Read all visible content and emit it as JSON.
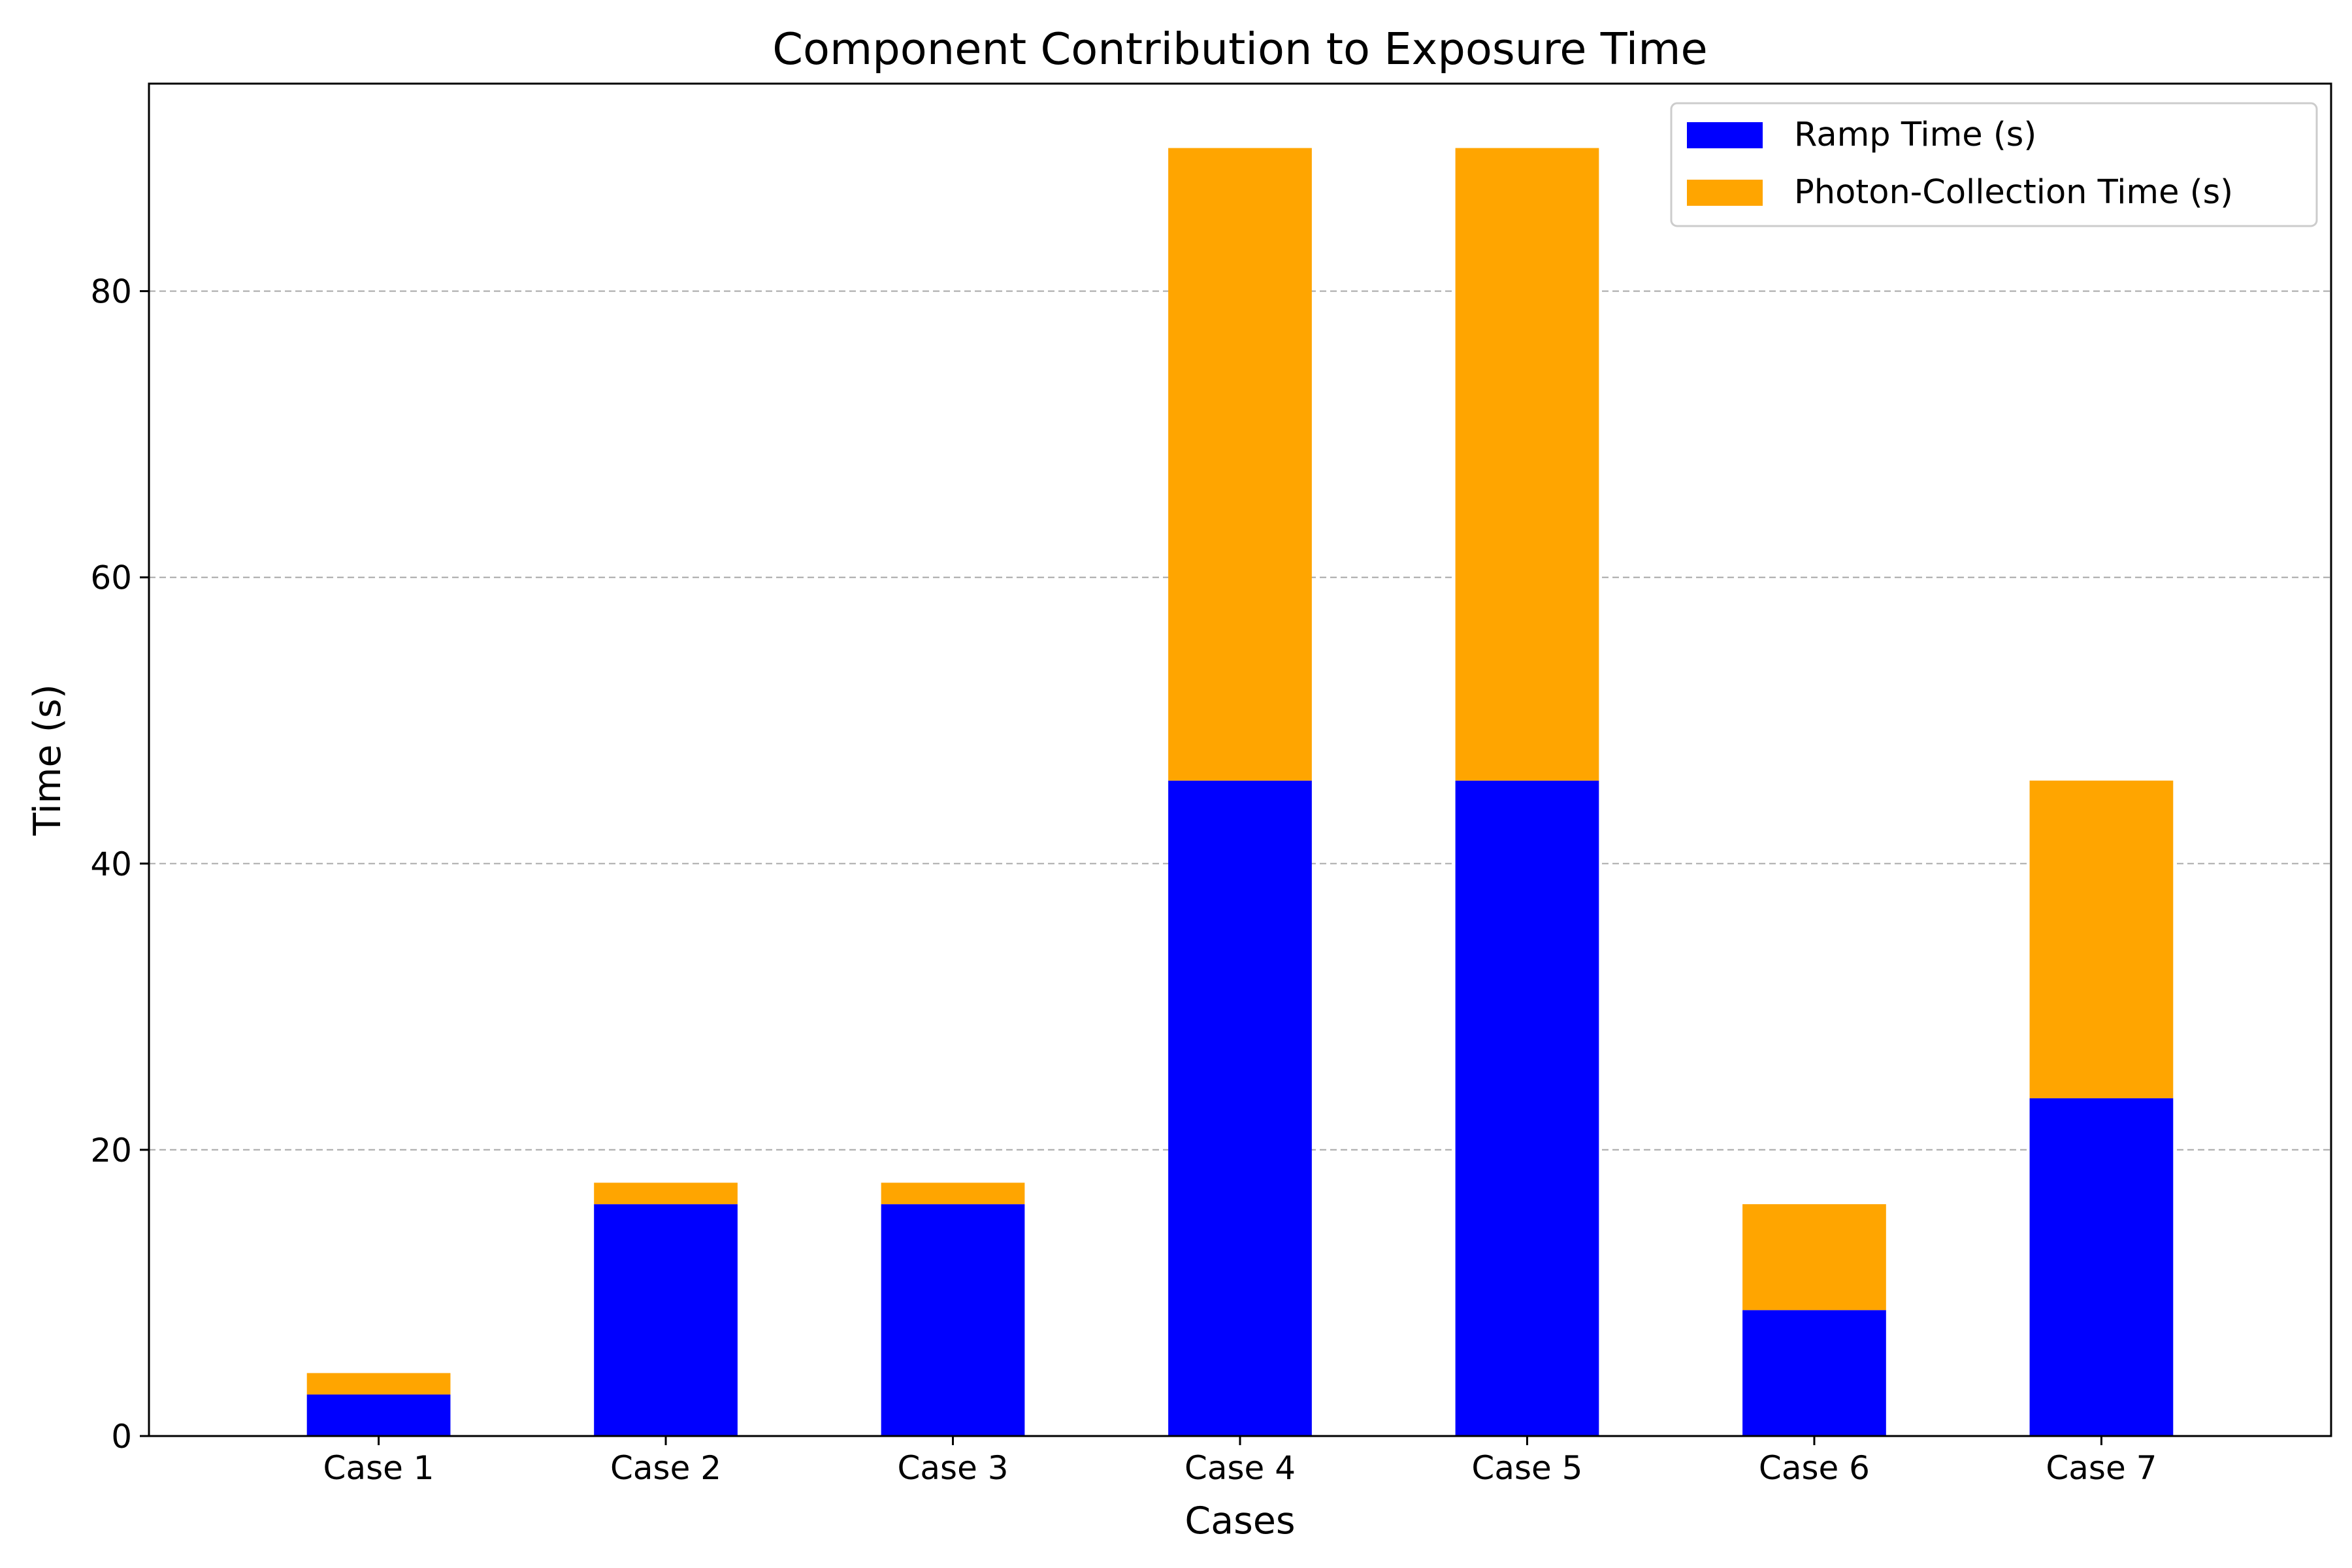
{
  "chart_data": {
    "type": "bar",
    "stacked": true,
    "title": "Component Contribution to Exposure Time",
    "xlabel": "Cases",
    "ylabel": "Time (s)",
    "categories": [
      "Case 1",
      "Case 2",
      "Case 3",
      "Case 4",
      "Case 5",
      "Case 6",
      "Case 7"
    ],
    "series": [
      {
        "name": "Ramp Time (s)",
        "color": "#0000ff",
        "values": [
          2.9,
          16.2,
          16.2,
          45.8,
          45.8,
          8.8,
          23.6
        ]
      },
      {
        "name": "Photon-Collection Time (s)",
        "color": "#ffa500",
        "values": [
          1.5,
          1.5,
          1.5,
          44.2,
          44.2,
          7.4,
          22.2
        ]
      }
    ],
    "ylim": [
      0,
      94.5
    ],
    "yticks": [
      0,
      20,
      40,
      60,
      80
    ],
    "grid": "y",
    "legend_position": "top-right"
  }
}
